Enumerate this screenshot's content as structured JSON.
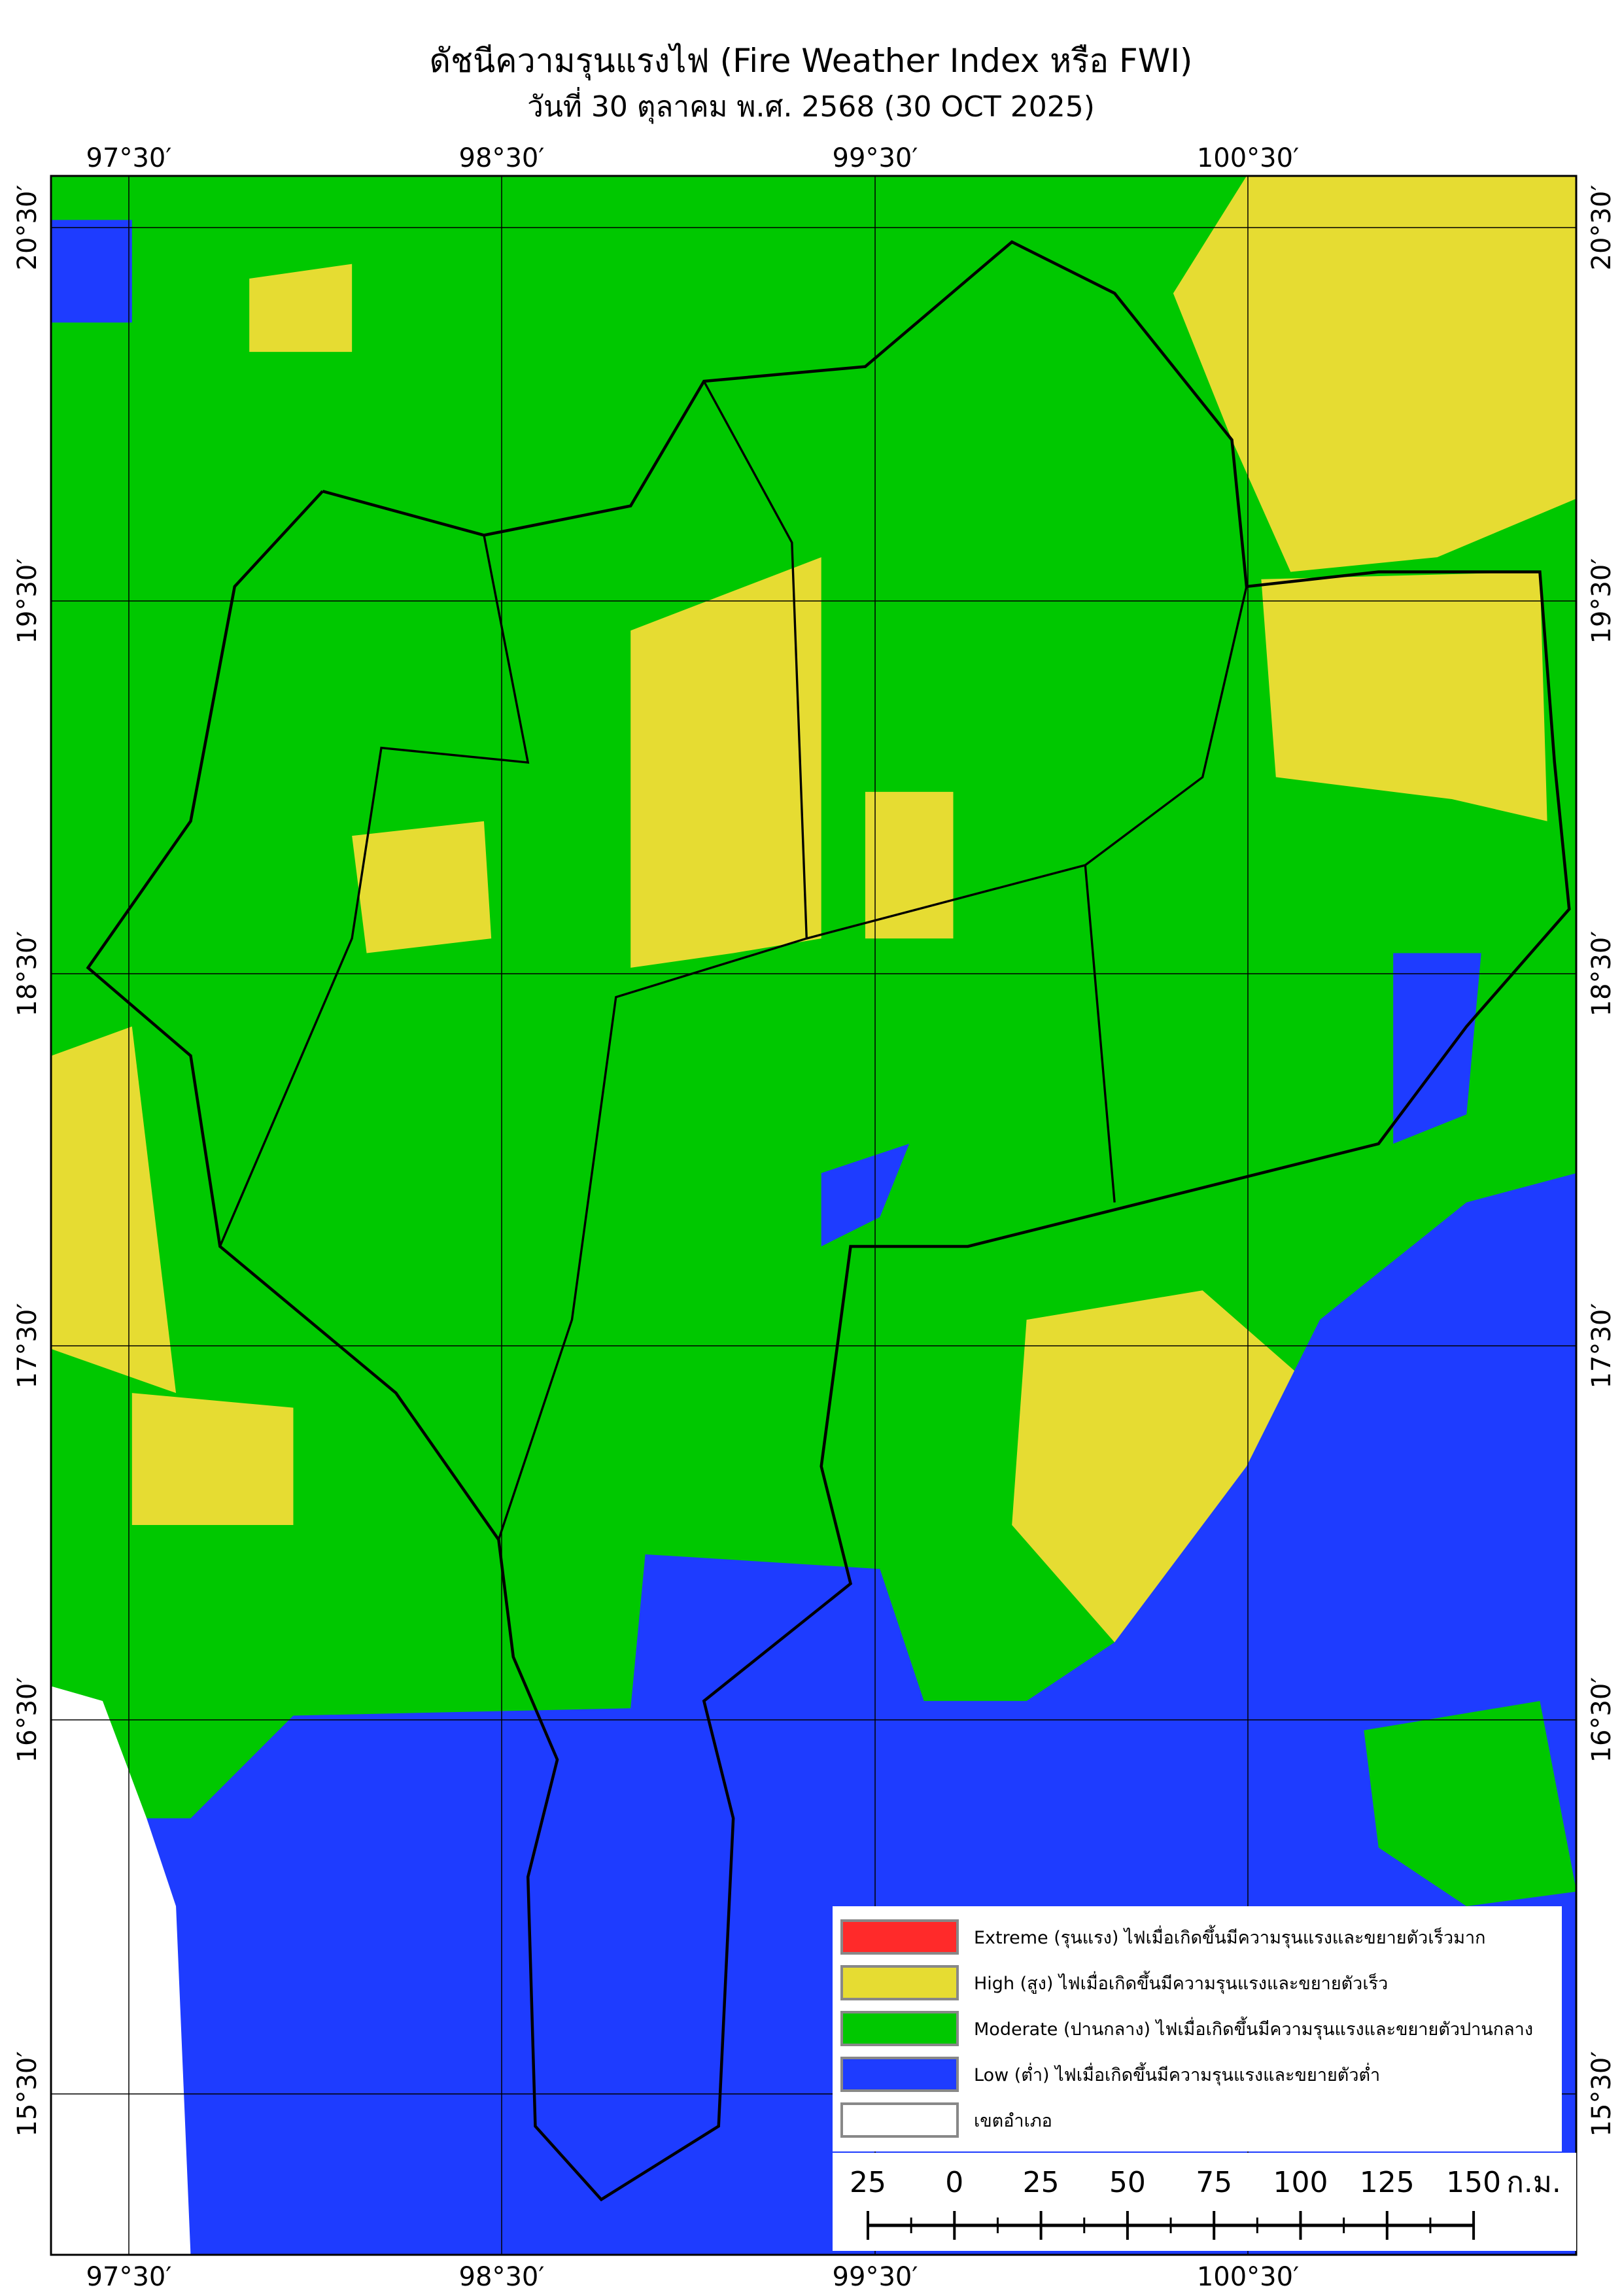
{
  "header": {
    "title": "ดัชนีความรุนแรงไฟ (Fire Weather Index หรือ FWI)",
    "subtitle": "วันที่ 30 ตุลาคม พ.ศ. 2568 (30 OCT 2025)"
  },
  "map": {
    "lon_labels": [
      "97°30′",
      "98°30′",
      "99°30′",
      "100°30′"
    ],
    "lat_labels": [
      "20°30′",
      "19°30′",
      "18°30′",
      "17°30′",
      "16°30′",
      "15°30′"
    ]
  },
  "legend": {
    "items": [
      {
        "label": "Extreme (รุนแรง) ไฟเมื่อเกิดขึ้นมีความรุนแรงและขยายตัวเร็วมาก",
        "color": "#ff2a2a"
      },
      {
        "label": "High (สูง) ไฟเมื่อเกิดขึ้นมีความรุนแรงและขยายตัวเร็ว",
        "color": "#e6dc32"
      },
      {
        "label": "Moderate (ปานกลาง) ไฟเมื่อเกิดขึ้นมีความรุนแรงและขยายตัวปานกลาง",
        "color": "#00c800"
      },
      {
        "label": "Low (ต่ำ) ไฟเมื่อเกิดขึ้นมีความรุนแรงและขยายตัวต่ำ",
        "color": "#1e3cff"
      },
      {
        "label": "เขตอำเภอ",
        "color": "#ffffff"
      }
    ]
  },
  "scale_bar": {
    "labels": [
      "25",
      "0",
      "25",
      "50",
      "75",
      "100",
      "125",
      "150"
    ],
    "unit": "ก.ม."
  }
}
